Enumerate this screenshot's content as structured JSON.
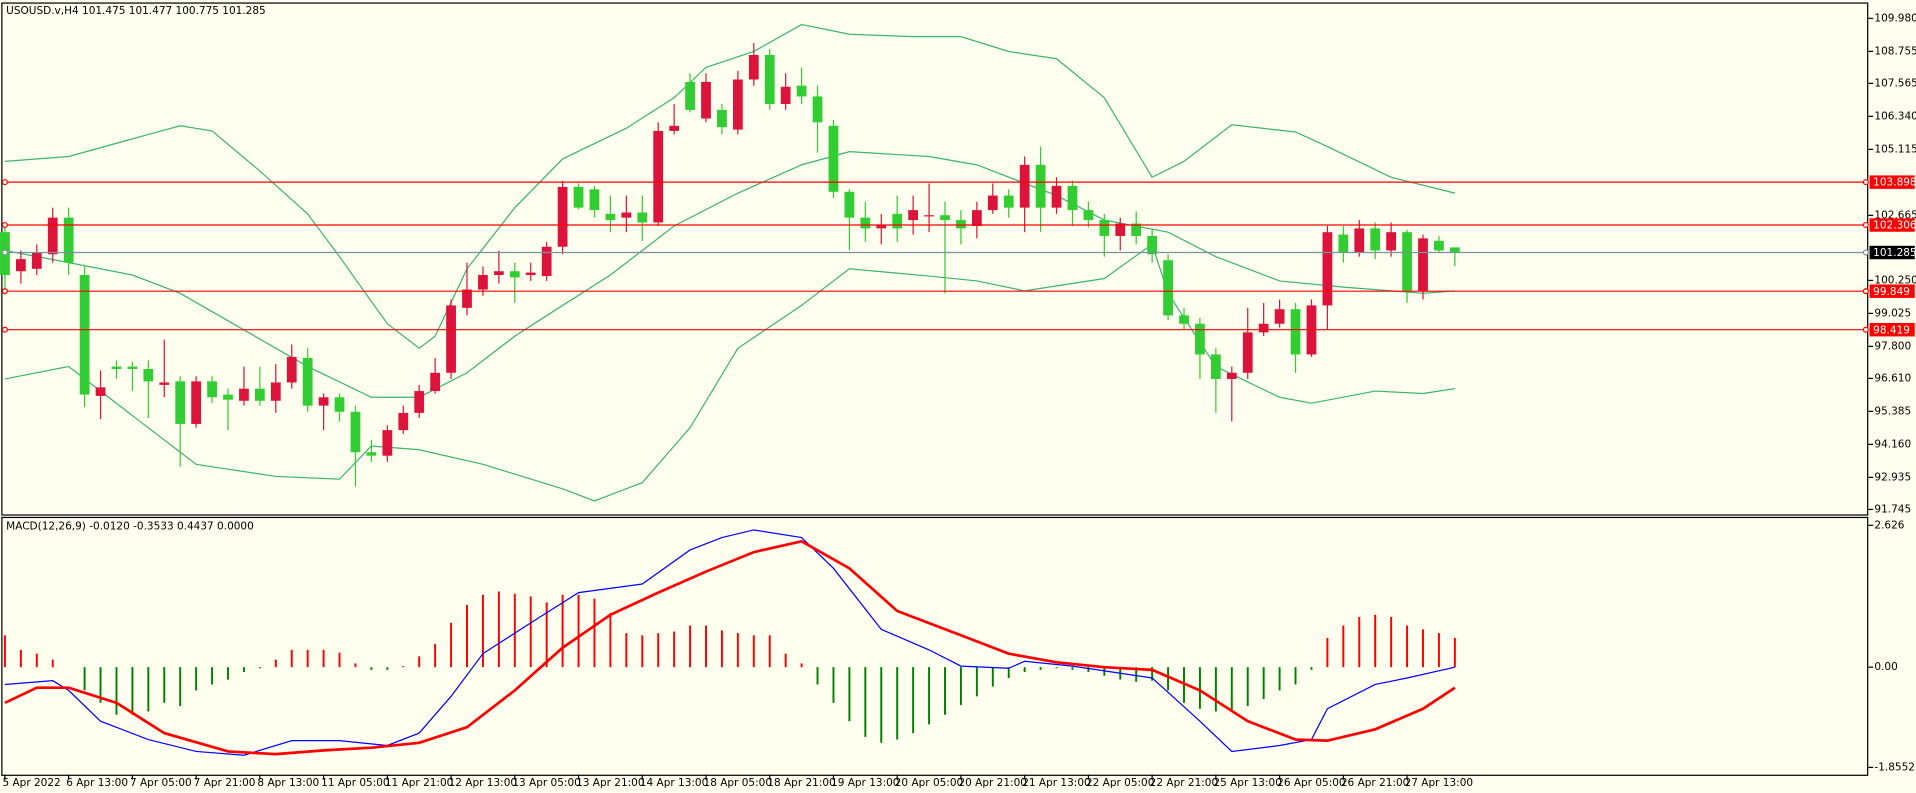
{
  "chart_data": [
    {
      "type": "candlestick",
      "title": "USOUSD.v,H4  101.475 101.477 100.775 101.285",
      "categories": [
        "5 Apr 2022",
        null,
        null,
        null,
        "6 Apr 13:00",
        null,
        null,
        null,
        "7 Apr 05:00",
        null,
        null,
        null,
        "7 Apr 21:00",
        null,
        null,
        null,
        "8 Apr 13:00",
        null,
        null,
        null,
        "11 Apr 05:00",
        null,
        null,
        null,
        "11 Apr 21:00",
        null,
        null,
        null,
        "12 Apr 13:00",
        null,
        null,
        null,
        "13 Apr 05:00",
        null,
        null,
        null,
        "13 Apr 21:00",
        null,
        null,
        null,
        "14 Apr 13:00",
        null,
        null,
        null,
        "18 Apr 05:00",
        null,
        null,
        null,
        "18 Apr 21:00",
        null,
        null,
        null,
        "19 Apr 13:00",
        null,
        null,
        null,
        "20 Apr 05:00",
        null,
        null,
        null,
        "20 Apr 21:00",
        null,
        null,
        null,
        "21 Apr 13:00",
        null,
        null,
        null,
        "22 Apr 05:00",
        null,
        null,
        null,
        "22 Apr 21:00",
        null,
        null,
        null,
        "25 Apr 13:00",
        null,
        null,
        null,
        "26 Apr 05:00",
        null,
        null,
        null,
        "26 Apr 21:00",
        null,
        null,
        null,
        "27 Apr 13:00",
        null,
        null,
        null
      ],
      "open": [
        102.04,
        100.59,
        100.68,
        101.22,
        102.58,
        100.45,
        95.96,
        97.05,
        97.05,
        96.96,
        96.37,
        96.5,
        94.92,
        96.5,
        96.01,
        95.78,
        96.23,
        95.78,
        96.46,
        97.37,
        95.6,
        95.91,
        95.37,
        93.87,
        93.74,
        94.69,
        95.33,
        96.14,
        96.82,
        99.23,
        99.91,
        100.45,
        100.59,
        100.45,
        100.41,
        101.5,
        103.72,
        103.63,
        102.72,
        102.58,
        102.77,
        102.4,
        105.8,
        107.62,
        106.26,
        106.58,
        105.85,
        107.71,
        108.62,
        106.8,
        107.48,
        107.08,
        105.99,
        103.54,
        102.58,
        102.18,
        102.72,
        102.49,
        102.63,
        102.67,
        102.49,
        102.27,
        102.86,
        103.4,
        102.95,
        104.54,
        102.95,
        103.76,
        102.86,
        102.49,
        101.9,
        102.36,
        101.9,
        101.0,
        98.95,
        98.64,
        97.5,
        96.59,
        96.82,
        98.32,
        98.64,
        99.18,
        97.5,
        99.32,
        101.95,
        101.27,
        102.18,
        101.36,
        102.04,
        99.86,
        101.72,
        101.475
      ],
      "high": [
        102.27,
        101.36,
        101.59,
        102.95,
        102.95,
        100.77,
        96.91,
        97.28,
        97.23,
        97.28,
        98.05,
        96.69,
        96.69,
        96.69,
        96.23,
        97.05,
        97.05,
        97.14,
        97.87,
        97.73,
        96.05,
        96.05,
        95.6,
        94.33,
        94.87,
        95.6,
        96.37,
        97.37,
        99.54,
        100.91,
        100.77,
        101.36,
        100.91,
        100.91,
        101.68,
        103.95,
        103.85,
        103.76,
        103.4,
        103.4,
        103.4,
        106.12,
        106.8,
        107.94,
        107.94,
        106.8,
        108.03,
        109.07,
        108.85,
        107.94,
        108.16,
        107.48,
        106.21,
        103.63,
        103.17,
        102.72,
        103.4,
        103.4,
        103.85,
        103.17,
        102.86,
        103.17,
        103.85,
        103.63,
        104.85,
        105.22,
        104.08,
        103.95,
        103.17,
        102.72,
        102.58,
        102.81,
        102.13,
        101.22,
        99.23,
        98.86,
        97.73,
        97.05,
        99.23,
        99.41,
        99.54,
        99.41,
        99.54,
        102.27,
        102.27,
        102.49,
        102.4,
        102.4,
        102.13,
        101.95,
        101.9,
        101.477
      ],
      "low": [
        99.77,
        100.13,
        100.45,
        100.91,
        100.45,
        95.55,
        95.1,
        96.59,
        96.14,
        95.14,
        95.91,
        93.33,
        94.78,
        95.69,
        94.69,
        95.6,
        95.6,
        95.33,
        96.23,
        95.37,
        94.69,
        95.01,
        92.6,
        93.51,
        93.51,
        94.55,
        95.14,
        96.05,
        96.59,
        98.95,
        99.68,
        100.13,
        99.41,
        100.23,
        100.23,
        101.22,
        102.9,
        102.58,
        102.04,
        102.04,
        101.72,
        102.27,
        105.67,
        106.49,
        106.12,
        105.67,
        105.67,
        107.48,
        106.58,
        106.58,
        106.8,
        104.99,
        103.31,
        101.36,
        101.68,
        101.59,
        101.68,
        101.95,
        102.04,
        99.77,
        101.59,
        101.81,
        102.72,
        102.58,
        102.04,
        102.04,
        102.72,
        102.27,
        102.22,
        101.13,
        101.36,
        101.59,
        100.91,
        98.77,
        98.41,
        96.59,
        95.33,
        95.01,
        96.59,
        98.18,
        98.5,
        96.82,
        97.41,
        98.41,
        100.91,
        101.13,
        101.04,
        101.13,
        99.41,
        99.54,
        101.27,
        100.775
      ],
      "close": [
        100.45,
        101.04,
        101.27,
        102.58,
        100.91,
        96.01,
        96.28,
        96.96,
        96.96,
        96.5,
        96.46,
        94.92,
        96.5,
        95.91,
        95.82,
        96.23,
        95.78,
        96.46,
        97.41,
        95.6,
        95.91,
        95.37,
        93.87,
        93.74,
        94.69,
        95.33,
        96.14,
        96.82,
        99.32,
        99.91,
        100.45,
        100.59,
        100.36,
        100.54,
        101.5,
        103.72,
        102.95,
        102.86,
        102.49,
        102.77,
        102.4,
        105.8,
        105.99,
        106.58,
        107.62,
        105.94,
        107.71,
        108.62,
        106.8,
        107.44,
        107.08,
        106.12,
        103.54,
        102.58,
        102.18,
        102.31,
        102.18,
        102.86,
        102.67,
        102.49,
        102.18,
        102.86,
        103.4,
        102.95,
        104.54,
        102.95,
        103.76,
        102.86,
        102.49,
        101.9,
        102.36,
        101.9,
        101.22,
        98.95,
        98.64,
        97.5,
        96.59,
        96.82,
        98.32,
        98.64,
        99.18,
        97.5,
        99.32,
        102.04,
        101.27,
        102.18,
        101.36,
        102.04,
        99.86,
        101.81,
        101.36,
        101.285
      ],
      "up_color": "#dc143c",
      "down_color": "#32cd32",
      "lines": [
        {
          "color": "#3cb371",
          "x": [
            0,
            4,
            9,
            11,
            13,
            16,
            19,
            21,
            24,
            26,
            27,
            29,
            32,
            35,
            39,
            42,
            44,
            47,
            50,
            53,
            57,
            60,
            63,
            66,
            69,
            72,
            74,
            77,
            81,
            83,
            87,
            91
          ],
          "values": [
            104.67,
            104.85,
            105.67,
            105.99,
            105.8,
            104.31,
            102.72,
            101.13,
            98.64,
            97.73,
            98.18,
            100.68,
            102.95,
            104.76,
            105.9,
            107.03,
            108.16,
            108.75,
            109.75,
            109.39,
            109.3,
            109.3,
            108.75,
            108.48,
            107.03,
            104.08,
            104.67,
            106.03,
            105.76,
            105.22,
            104.08,
            103.49
          ]
        },
        {
          "color": "#3cb371",
          "x": [
            0,
            4,
            8,
            11,
            15,
            19,
            23,
            26,
            29,
            32,
            35,
            38,
            42,
            46,
            50,
            53,
            58,
            61,
            66,
            69,
            73,
            76,
            80,
            84,
            89,
            91
          ],
          "values": [
            101.36,
            100.91,
            100.45,
            99.77,
            98.41,
            97.05,
            95.91,
            95.91,
            96.82,
            98.18,
            99.32,
            100.45,
            102.27,
            103.49,
            104.54,
            105.03,
            104.85,
            104.54,
            103.4,
            102.49,
            102.04,
            101.13,
            100.23,
            100.0,
            99.77,
            99.86
          ]
        },
        {
          "color": "#3cb371",
          "x": [
            0,
            4,
            8,
            12,
            17,
            21,
            23,
            26,
            30,
            35,
            37,
            40,
            43,
            46,
            50,
            53,
            58,
            61,
            64,
            69,
            72,
            73,
            76,
            80,
            82,
            86,
            89,
            91
          ],
          "values": [
            96.59,
            97.05,
            95.23,
            93.42,
            92.97,
            92.87,
            94.1,
            93.96,
            93.42,
            92.51,
            92.06,
            92.74,
            94.78,
            97.73,
            99.32,
            100.68,
            100.41,
            100.23,
            99.86,
            100.32,
            101.59,
            99.77,
            97.05,
            95.91,
            95.69,
            96.14,
            96.05,
            96.23
          ]
        }
      ],
      "levels": [
        {
          "value": 103.898,
          "color": "#ff0000"
        },
        {
          "value": 102.306,
          "color": "#ff0000"
        },
        {
          "value": 99.849,
          "color": "#ff0000"
        },
        {
          "value": 98.419,
          "color": "#ff0000"
        }
      ],
      "price_line": {
        "value": 101.285,
        "color": "#7890a0",
        "label_color": "#000000"
      },
      "ylim": [
        91.56,
        110.48
      ],
      "yticks": [
        {
          "value": 109.98,
          "label": "109.980"
        },
        108.755,
        107.565,
        {
          "value": 106.34,
          "label": "106.340"
        },
        105.115,
        102.665,
        {
          "value": 100.25,
          "label": "100.250"
        },
        99.025,
        {
          "value": 97.8,
          "label": "97.800"
        },
        {
          "value": 96.61,
          "label": "96.610"
        },
        95.385,
        {
          "value": 94.16,
          "label": "94.160"
        },
        92.935,
        91.745
      ]
    },
    {
      "type": "macd",
      "title": "MACD(12,26,9) -0.0120 -0.3533 0.4437 0.0000",
      "histogram": {
        "pos_color": "#ff0000",
        "neg_color": "#008000",
        "values": [
          0.59,
          0.32,
          0.25,
          0.14,
          0,
          -0.43,
          -0.66,
          -0.88,
          -0.88,
          -0.82,
          -0.66,
          -0.72,
          -0.43,
          -0.32,
          -0.23,
          -0.09,
          -0.02,
          0.14,
          0.32,
          0.32,
          0.32,
          0.27,
          0.07,
          -0.05,
          -0.05,
          0.02,
          0.2,
          0.43,
          0.82,
          1.15,
          1.34,
          1.4,
          1.36,
          1.31,
          1.2,
          1.34,
          1.34,
          1.27,
          1.0,
          0.63,
          0.59,
          0.63,
          0.66,
          0.77,
          0.77,
          0.68,
          0.63,
          0.59,
          0.59,
          0.25,
          0.07,
          -0.32,
          -0.66,
          -1.0,
          -1.29,
          -1.4,
          -1.34,
          -1.22,
          -1.06,
          -0.88,
          -0.7,
          -0.54,
          -0.36,
          -0.2,
          -0.09,
          -0.05,
          -0.02,
          -0.05,
          -0.09,
          -0.16,
          -0.23,
          -0.27,
          -0.25,
          -0.43,
          -0.66,
          -0.77,
          -0.82,
          -0.82,
          -0.72,
          -0.59,
          -0.43,
          -0.32,
          -0.05,
          0.54,
          0.77,
          0.93,
          0.97,
          0.93,
          0.77,
          0.7,
          0.63,
          0.54
        ]
      },
      "lines": [
        {
          "color": "#0000ff",
          "width": 1,
          "x": [
            0,
            3,
            4,
            6,
            9,
            12,
            15,
            18,
            21,
            24,
            26,
            28,
            30,
            33,
            36,
            40,
            43,
            45,
            47,
            50,
            52,
            55,
            58,
            60,
            63,
            64,
            67,
            72,
            75,
            77,
            80,
            82,
            83,
            86,
            88,
            91
          ],
          "values": [
            -0.32,
            -0.25,
            -0.43,
            -1.0,
            -1.34,
            -1.56,
            -1.63,
            -1.36,
            -1.36,
            -1.45,
            -1.22,
            -0.54,
            0.25,
            0.82,
            1.38,
            1.54,
            2.17,
            2.4,
            2.54,
            2.4,
            1.83,
            0.7,
            0.32,
            0.02,
            -0.02,
            0.11,
            0.02,
            -0.2,
            -1.0,
            -1.56,
            -1.45,
            -1.34,
            -0.77,
            -0.32,
            -0.2,
            0
          ]
        },
        {
          "color": "#ff0000",
          "width": 2.2,
          "x": [
            0,
            2,
            4,
            7,
            10,
            14,
            17,
            20,
            23,
            26,
            29,
            32,
            35,
            38,
            41,
            44,
            47,
            50,
            53,
            56,
            60,
            63,
            66,
            69,
            72,
            75,
            78,
            81,
            83,
            86,
            89,
            91
          ],
          "values": [
            -0.66,
            -0.38,
            -0.38,
            -0.66,
            -1.22,
            -1.56,
            -1.61,
            -1.54,
            -1.49,
            -1.4,
            -1.11,
            -0.43,
            0.36,
            0.97,
            1.38,
            1.77,
            2.13,
            2.33,
            1.83,
            1.04,
            0.59,
            0.25,
            0.09,
            0,
            -0.05,
            -0.43,
            -1.0,
            -1.34,
            -1.36,
            -1.15,
            -0.77,
            -0.38
          ]
        }
      ],
      "ylim": [
        -1.99,
        2.76
      ],
      "yticks": [
        2.626,
        {
          "value": 0,
          "label": "0.00"
        },
        -1.8552
      ]
    }
  ]
}
